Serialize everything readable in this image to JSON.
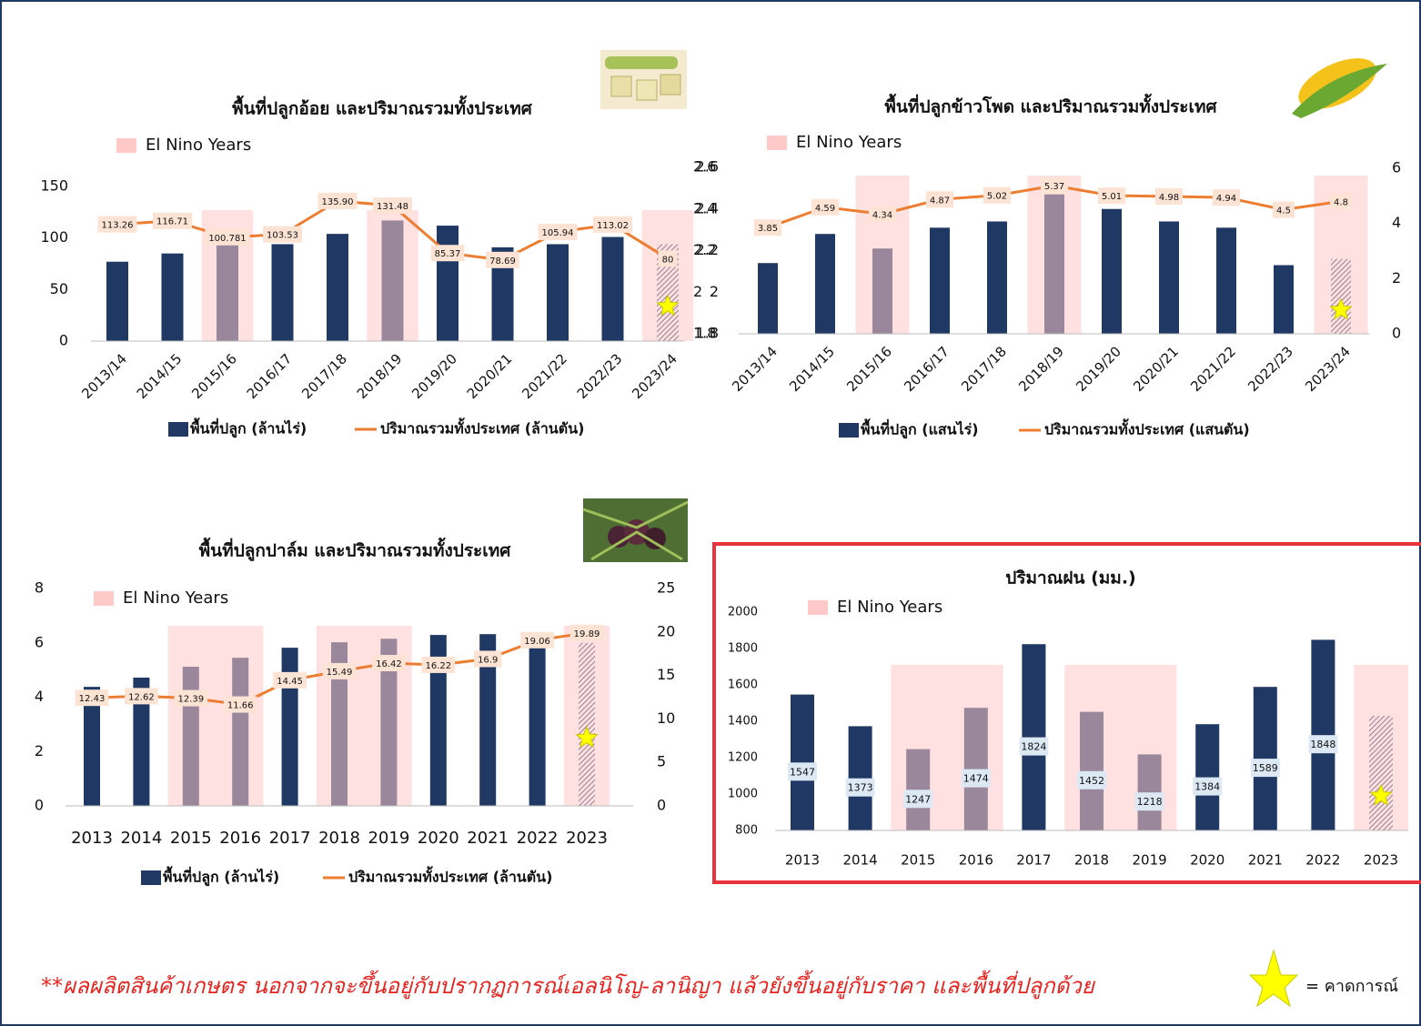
{
  "chart_data": [
    {
      "type": "combo",
      "title": "พื้นที่ปลูกอ้อย และปริมาณรวมทั้งประเทศ",
      "highlight_label": "El Nino Years",
      "highlight_color": "#ffc9c9",
      "highlight_categories": [
        "2015/16",
        "2018/19",
        "2023/24"
      ],
      "forecast_category": "2023/24",
      "categories": [
        "2013/14",
        "2014/15",
        "2015/16",
        "2016/17",
        "2017/18",
        "2018/19",
        "2019/20",
        "2020/21",
        "2021/22",
        "2022/23",
        "2023/24"
      ],
      "series": [
        {
          "name": "พื้นที่ปลูก (ล้านไร่)",
          "kind": "bar",
          "axis": "y",
          "color": "#1f3864",
          "values": [
            77,
            85,
            94,
            94,
            104,
            117,
            112,
            91,
            94,
            101,
            94
          ]
        },
        {
          "name": "ปริมาณรวมทั้งประเทศ (ล้านตัน)",
          "kind": "line",
          "axis": "y",
          "color": "#ed7d31",
          "values": [
            113.26,
            116.71,
            100.781,
            103.53,
            135.9,
            131.48,
            85.37,
            78.69,
            105.94,
            113.02,
            80
          ],
          "value_labels": [
            "113.26",
            "116.71",
            "100.781",
            "103.53",
            "135.90",
            "131.48",
            "85.37",
            "78.69",
            "105.94",
            "113.02",
            "80"
          ]
        }
      ],
      "ylim": [
        0,
        150
      ],
      "yticks": [
        0,
        50,
        100,
        150
      ],
      "y2lim": [
        1.8,
        2.6
      ],
      "y2ticks": [
        1.8,
        2,
        2.2,
        2.4,
        2.6
      ]
    },
    {
      "type": "combo",
      "title": "พื้นที่ปลูกข้าวโพด และปริมาณรวมทั้งประเทศ",
      "highlight_label": "El Nino Years",
      "highlight_color": "#ffc9c9",
      "highlight_categories": [
        "2015/16",
        "2018/19",
        "2023/24"
      ],
      "forecast_category": "2023/24",
      "categories": [
        "2013/14",
        "2014/15",
        "2015/16",
        "2016/17",
        "2017/18",
        "2018/19",
        "2019/20",
        "2020/21",
        "2021/22",
        "2022/23",
        "2023/24"
      ],
      "series": [
        {
          "name": "พื้นที่ปลูก (แสนไร่)",
          "kind": "bar",
          "axis": "y",
          "color": "#1f3864",
          "values": [
            2.14,
            2.28,
            2.21,
            2.31,
            2.34,
            2.47,
            2.4,
            2.34,
            2.31,
            2.13,
            2.16
          ]
        },
        {
          "name": "ปริมาณรวมทั้งประเทศ (แสนตัน)",
          "kind": "line",
          "axis": "y2",
          "color": "#ed7d31",
          "values": [
            3.85,
            4.59,
            4.34,
            4.87,
            5.02,
            5.37,
            5.01,
            4.98,
            4.94,
            4.5,
            4.8
          ]
        }
      ],
      "ylim": [
        1.8,
        2.6
      ],
      "yticks": [
        1.8,
        2,
        2.2,
        2.4,
        2.6
      ],
      "y2lim": [
        0,
        6
      ],
      "y2ticks": [
        0,
        2,
        4,
        6
      ]
    },
    {
      "type": "combo",
      "title": "พื้นที่ปลูกปาล์ม และปริมาณรวมทั้งประเทศ",
      "highlight_label": "El Nino Years",
      "highlight_color": "#ffc9c9",
      "highlight_categories": [
        "2015",
        "2016",
        "2018",
        "2019",
        "2023"
      ],
      "forecast_category": "2023",
      "categories": [
        "2013",
        "2014",
        "2015",
        "2016",
        "2017",
        "2018",
        "2019",
        "2020",
        "2021",
        "2022",
        "2023"
      ],
      "series": [
        {
          "name": "พื้นที่ปลูก (ล้านไร่)",
          "kind": "bar",
          "axis": "y",
          "color": "#1f3864",
          "values": [
            4.38,
            4.72,
            5.12,
            5.45,
            5.82,
            6.02,
            6.15,
            6.29,
            6.32,
            6.2,
            6.0
          ]
        },
        {
          "name": "ปริมาณรวมทั้งประเทศ (ล้านตัน)",
          "kind": "line",
          "axis": "y2",
          "color": "#ed7d31",
          "values": [
            12.43,
            12.62,
            12.39,
            11.66,
            14.45,
            15.49,
            16.42,
            16.22,
            16.9,
            19.06,
            19.89
          ]
        }
      ],
      "ylim": [
        0,
        8
      ],
      "yticks": [
        0,
        2,
        4,
        6,
        8
      ],
      "y2lim": [
        0,
        25
      ],
      "y2ticks": [
        0,
        5,
        10,
        15,
        20,
        25
      ]
    },
    {
      "type": "bar",
      "title": "ปริมาณฝน (มม.)",
      "highlight_label": "El Nino Years",
      "highlight_color": "#ffc9c9",
      "highlight_categories": [
        "2015",
        "2016",
        "2018",
        "2019",
        "2023"
      ],
      "forecast_category": "2023",
      "categories": [
        "2013",
        "2014",
        "2015",
        "2016",
        "2017",
        "2018",
        "2019",
        "2020",
        "2021",
        "2022",
        "2023"
      ],
      "values": [
        1547,
        1373,
        1247,
        1474,
        1824,
        1452,
        1218,
        1384,
        1589,
        1848,
        1430
      ],
      "color": "#1f3864",
      "bar_labels": true,
      "ylim": [
        800,
        2000
      ],
      "yticks": [
        800,
        1000,
        1200,
        1400,
        1600,
        1800,
        2000
      ]
    }
  ],
  "footnote": "**ผลผลิตสินค้าเกษตร นอกจากจะขึ้นอยู่กับปรากฏการณ์เอลนิโญ-ลานิญา แล้วยังขึ้นอยู่กับราคา และพื้นที่ปลูกด้วย",
  "star_note": "= คาดการณ์"
}
